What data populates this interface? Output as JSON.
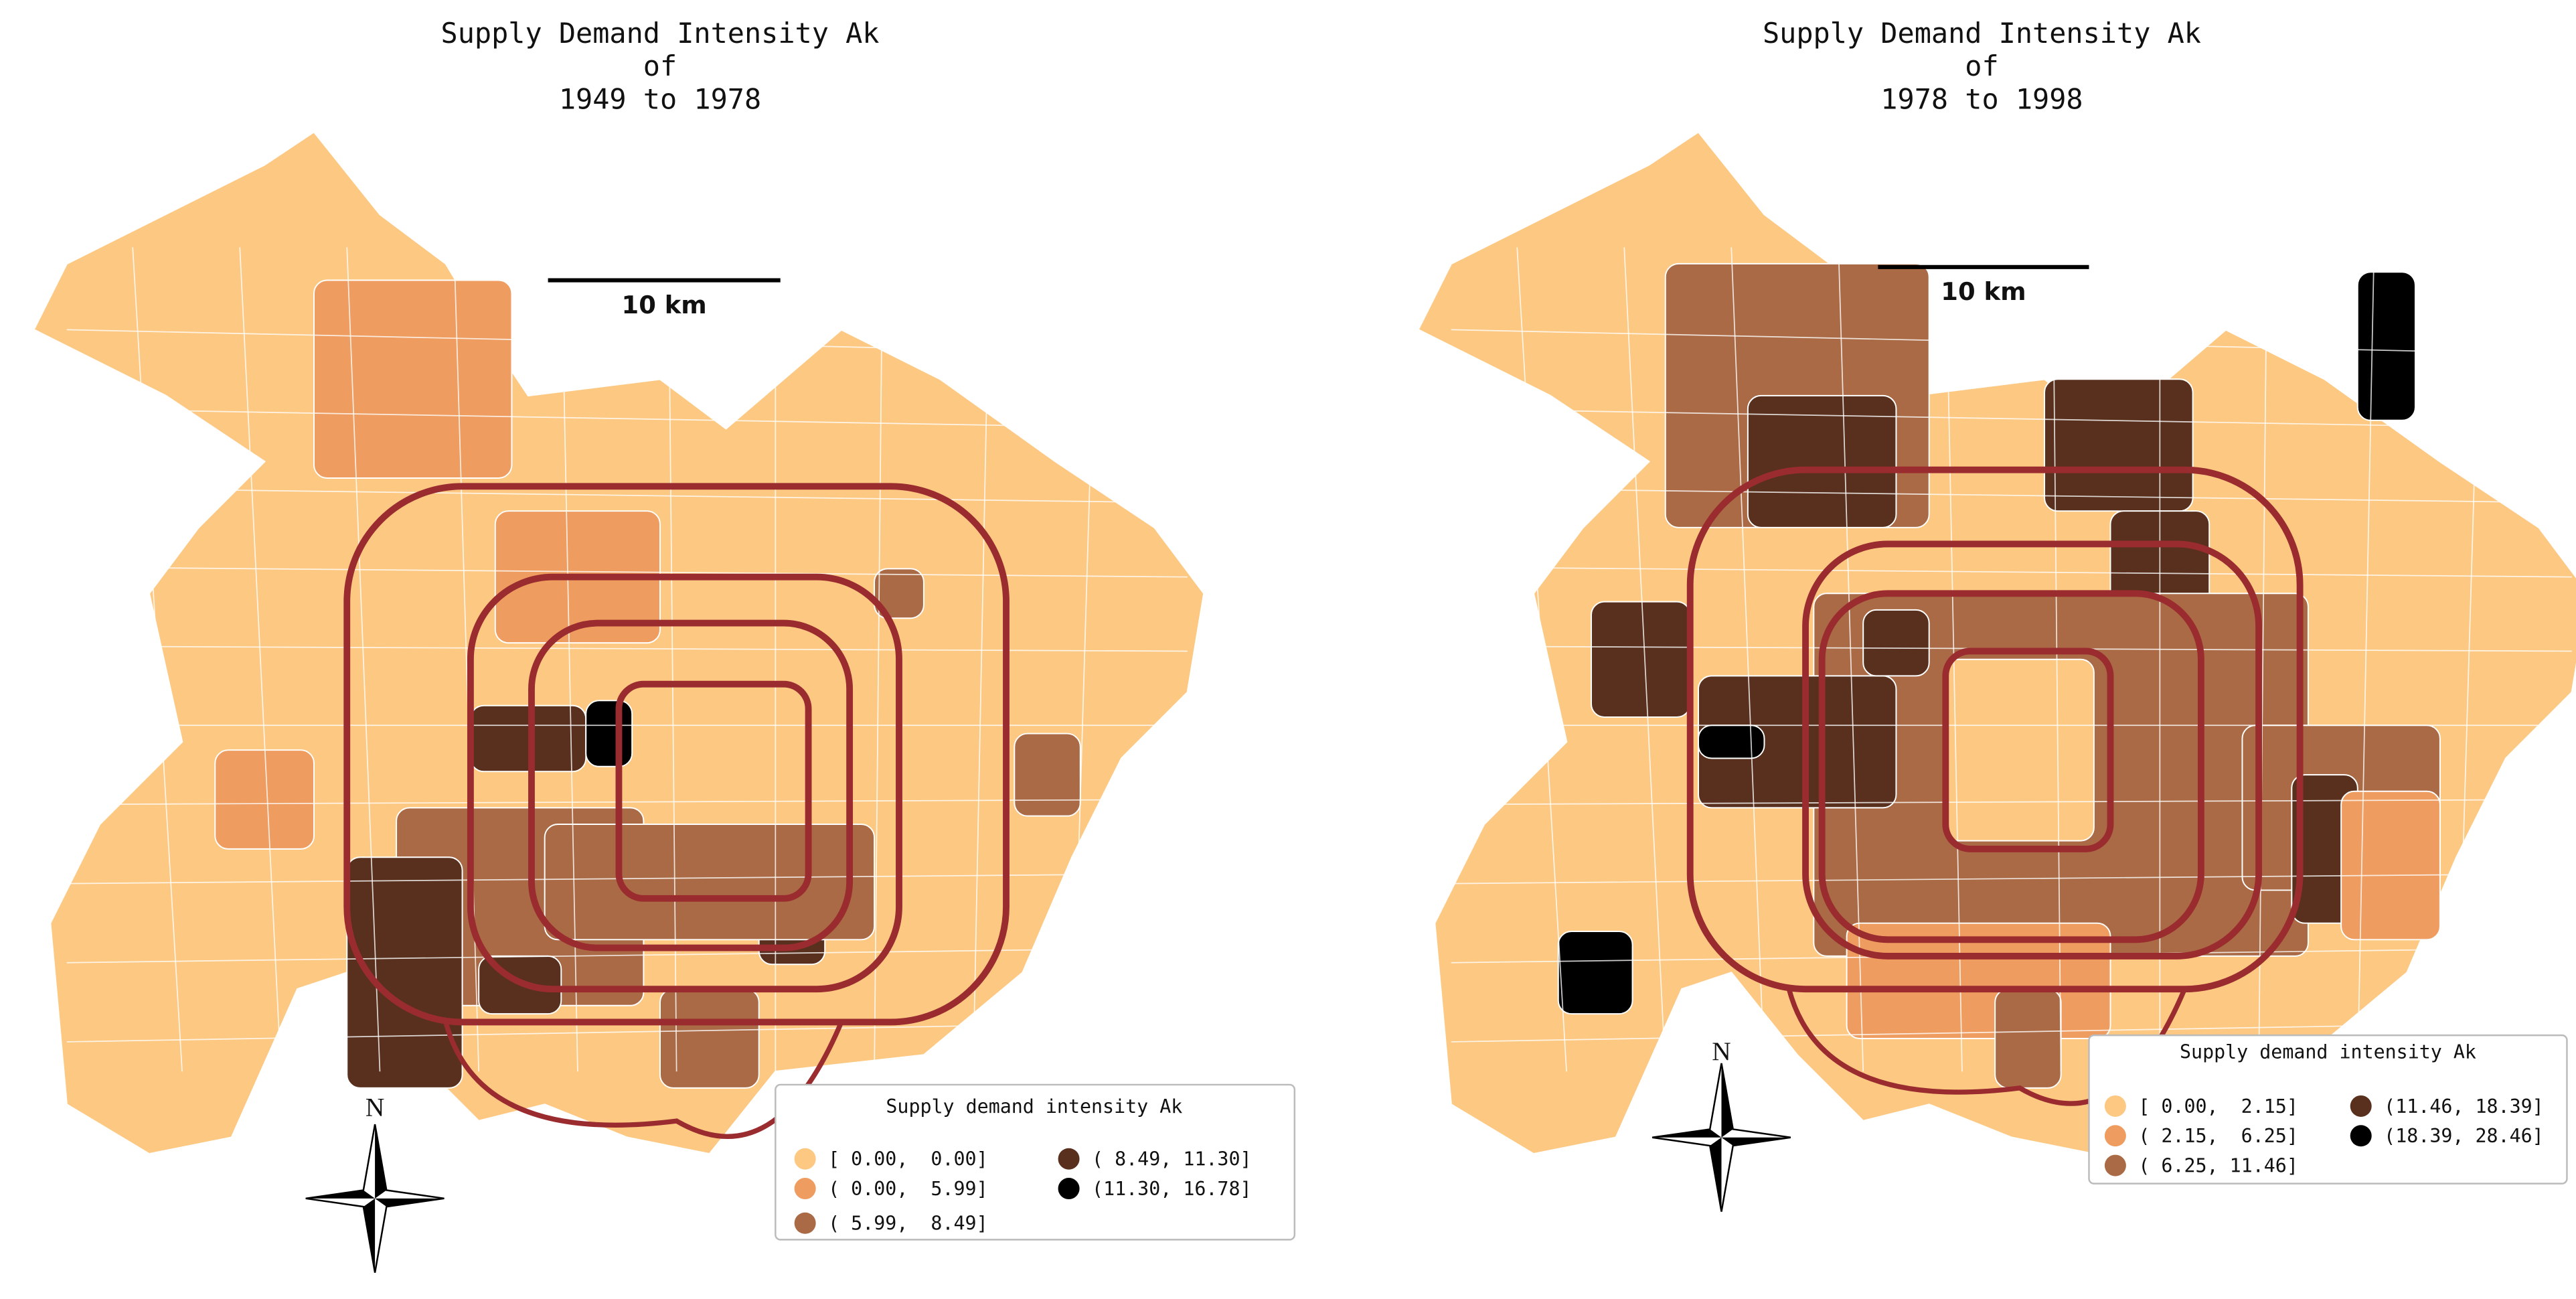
{
  "panels": [
    {
      "title": [
        "Supply Demand Intensity Ak",
        "of",
        "1949 to 1978"
      ],
      "scale_label": "10 km",
      "north": "N",
      "legend": {
        "title": "Supply demand intensity Ak",
        "items": [
          {
            "label": "[ 0.00,  0.00]",
            "color": "#fdc882"
          },
          {
            "label": "( 0.00,  5.99]",
            "color": "#ee9c5f"
          },
          {
            "label": "( 5.99,  8.49]",
            "color": "#a96a45"
          },
          {
            "label": "( 8.49, 11.30]",
            "color": "#58301d"
          },
          {
            "label": "(11.30, 16.78]",
            "color": "#000000"
          }
        ]
      }
    },
    {
      "title": [
        "Supply Demand Intensity Ak",
        "of",
        "1978 to 1998"
      ],
      "scale_label": "10 km",
      "north": "N",
      "legend": {
        "title": "Supply demand intensity Ak",
        "items": [
          {
            "label": "[ 0.00,  2.15]",
            "color": "#fdc882"
          },
          {
            "label": "( 2.15,  6.25]",
            "color": "#ee9c5f"
          },
          {
            "label": "( 6.25, 11.46]",
            "color": "#a96a45"
          },
          {
            "label": "(11.46, 18.39]",
            "color": "#58301d"
          },
          {
            "label": "(18.39, 28.46]",
            "color": "#000000"
          }
        ]
      }
    }
  ]
}
